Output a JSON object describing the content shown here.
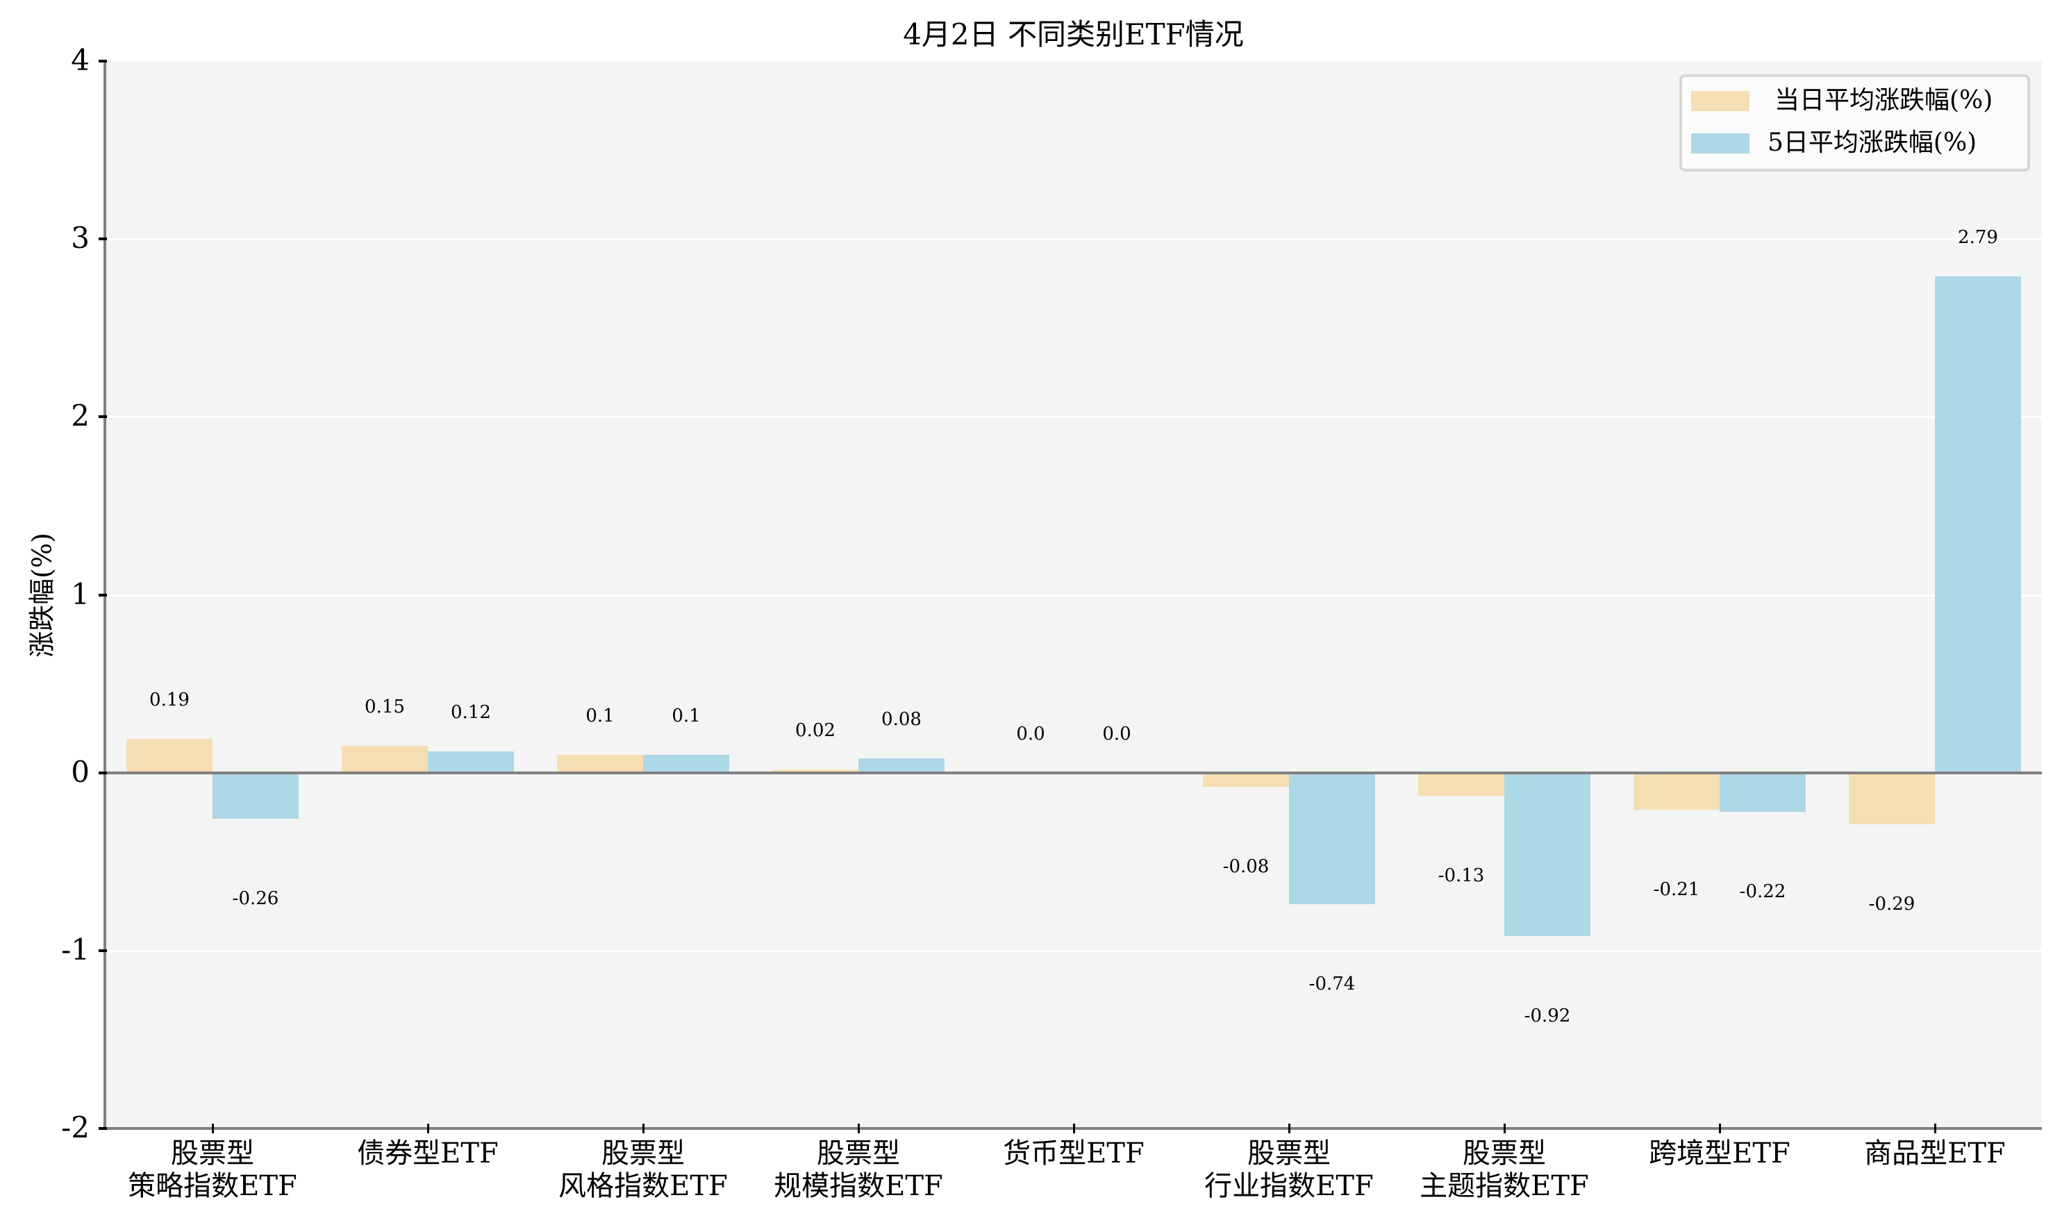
{
  "title": "4月2日 不同类别ETF情况",
  "y_axis": {
    "label": "涨跌幅(%)",
    "ticks": [
      "4",
      "3",
      "2",
      "1",
      "0",
      "-1",
      "-2"
    ]
  },
  "legend": {
    "items": [
      {
        "label": "当日平均涨跌幅(%)",
        "color": "#F5DEB3"
      },
      {
        "label": "5日平均涨跌幅(%)",
        "color": "#ADD8E6"
      }
    ]
  },
  "x_axis": {
    "labels": [
      {
        "line1": "股票型",
        "line2": "策略指数ETF"
      },
      {
        "line1": "债券型ETF",
        "line2": ""
      },
      {
        "line1": "股票型",
        "line2": "风格指数ETF"
      },
      {
        "line1": "股票型",
        "line2": "规模指数ETF"
      },
      {
        "line1": "货币型ETF",
        "line2": ""
      },
      {
        "line1": "股票型",
        "line2": "行业指数ETF"
      },
      {
        "line1": "股票型",
        "line2": "主题指数ETF"
      },
      {
        "line1": "跨境型ETF",
        "line2": ""
      },
      {
        "line1": "商品型ETF",
        "line2": ""
      }
    ]
  },
  "value_labels": {
    "daily": [
      "0.19",
      "0.15",
      "0.1",
      "0.02",
      "0.0",
      "-0.08",
      "-0.13",
      "-0.21",
      "-0.29"
    ],
    "five_day": [
      "-0.26",
      "0.12",
      "0.1",
      "0.08",
      "0.0",
      "-0.74",
      "-0.92",
      "-0.22",
      "2.79"
    ]
  },
  "colors": {
    "daily": "#F5DEB3",
    "five_day": "#ADD8E6",
    "plot_background": "#F4F4F4",
    "axis": "#808080"
  },
  "chart_data": {
    "type": "bar",
    "title": "4月2日 不同类别ETF情况",
    "xlabel": "",
    "ylabel": "涨跌幅(%)",
    "ylim": [
      -2,
      4
    ],
    "yticks": [
      -2,
      -1,
      0,
      1,
      2,
      3,
      4
    ],
    "grid": true,
    "legend_position": "upper right",
    "categories": [
      "股票型\n策略指数ETF",
      "债券型ETF",
      "股票型\n风格指数ETF",
      "股票型\n规模指数ETF",
      "货币型ETF",
      "股票型\n行业指数ETF",
      "股票型\n主题指数ETF",
      "跨境型ETF",
      "商品型ETF"
    ],
    "series": [
      {
        "name": "当日平均涨跌幅(%)",
        "color": "#F5DEB3",
        "values": [
          0.19,
          0.15,
          0.1,
          0.02,
          0.0,
          -0.08,
          -0.13,
          -0.21,
          -0.29
        ]
      },
      {
        "name": "5日平均涨跌幅(%)",
        "color": "#ADD8E6",
        "values": [
          -0.26,
          0.12,
          0.1,
          0.08,
          0.0,
          -0.74,
          -0.92,
          -0.22,
          2.79
        ]
      }
    ]
  }
}
